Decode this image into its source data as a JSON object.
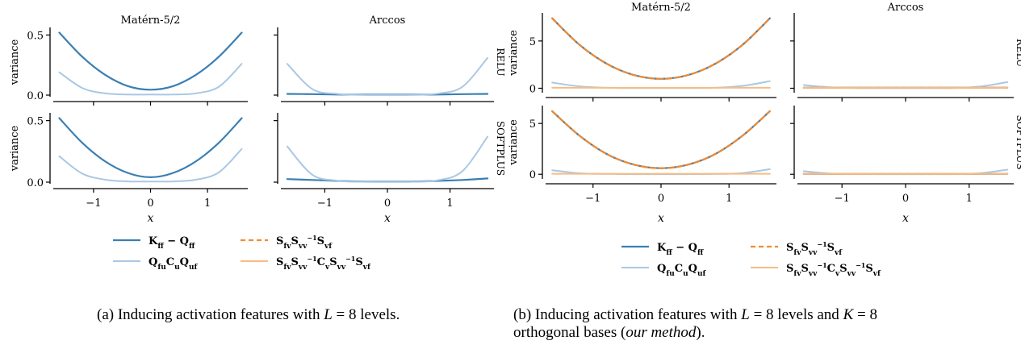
{
  "figure": {
    "captions": [
      {
        "label": "(a)",
        "text": "Inducing activation features with",
        "var": "L",
        "eq": "= 8 levels."
      },
      {
        "label": "(b)",
        "text": "Inducing activation features with",
        "var": "L",
        "eq": "= 8 levels and",
        "var2": "K",
        "eq2": "= 8",
        "line2": "orthogonal bases (",
        "line2_em": "our method",
        "line2_end": ")."
      }
    ],
    "colors": {
      "kff_minus_qff": "#3a7fb3",
      "qfu_cu_quf": "#aac8e4",
      "sfv_svv_svf": "#f28a30",
      "sfv_svv_cv_svv_svf": "#f7bc83",
      "axis": "#000000"
    }
  },
  "chart_data": [
    {
      "panel": "a",
      "type": "line",
      "column_titles": [
        "Matérn-5/2",
        "Arccos"
      ],
      "row_labels": [
        "RELU",
        "SOFTPLUS"
      ],
      "ylabel": "variance",
      "xlabel": "x",
      "xlim": [
        -1.65,
        1.65
      ],
      "xticks": [
        -1,
        0,
        1
      ],
      "legend": [
        "Kff − Qff",
        "Qfu Cu Quf",
        "Sfv Svv⁻¹ Svf",
        "Sfv Svv⁻¹ Cv Svv⁻¹ Svf"
      ],
      "legend_placement": "bottom-center",
      "grid": false,
      "subplots": [
        {
          "row": "RELU",
          "col": "Matérn-5/2",
          "ylim": [
            0,
            0.55
          ],
          "yticks": [
            0.0,
            0.5
          ],
          "series": [
            {
              "name": "Kff − Qff",
              "x": [
                -1.6,
                -1.2,
                -0.8,
                -0.4,
                0,
                0.4,
                0.8,
                1.2,
                1.6
              ],
              "y": [
                0.52,
                0.32,
                0.17,
                0.075,
                0.045,
                0.075,
                0.17,
                0.32,
                0.52
              ]
            },
            {
              "name": "Qfu Cu Quf",
              "x": [
                -1.6,
                -1.2,
                -0.8,
                -0.4,
                0,
                0.4,
                0.8,
                1.2,
                1.6
              ],
              "y": [
                0.19,
                0.06,
                0.015,
                0.005,
                0.005,
                0.005,
                0.015,
                0.07,
                0.26
              ]
            }
          ]
        },
        {
          "row": "RELU",
          "col": "Arccos",
          "ylim": [
            0,
            0.55
          ],
          "yticks": [],
          "series": [
            {
              "name": "Kff − Qff",
              "x": [
                -1.6,
                -1.2,
                -0.8,
                -0.4,
                0,
                0.4,
                0.8,
                1.2,
                1.6
              ],
              "y": [
                0.01,
                0.008,
                0.005,
                0.004,
                0.004,
                0.004,
                0.005,
                0.008,
                0.01
              ]
            },
            {
              "name": "Qfu Cu Quf",
              "x": [
                -1.6,
                -1.2,
                -0.8,
                -0.4,
                0,
                0.4,
                0.8,
                1.2,
                1.6
              ],
              "y": [
                0.26,
                0.05,
                0.01,
                0.002,
                0.001,
                0.002,
                0.012,
                0.07,
                0.31
              ]
            }
          ]
        },
        {
          "row": "SOFTPLUS",
          "col": "Matérn-5/2",
          "ylim": [
            0,
            0.55
          ],
          "yticks": [
            0.0,
            0.5
          ],
          "series": [
            {
              "name": "Kff − Qff",
              "x": [
                -1.6,
                -1.2,
                -0.8,
                -0.4,
                0,
                0.4,
                0.8,
                1.2,
                1.6
              ],
              "y": [
                0.52,
                0.32,
                0.17,
                0.075,
                0.04,
                0.075,
                0.17,
                0.32,
                0.52
              ]
            },
            {
              "name": "Qfu Cu Quf",
              "x": [
                -1.6,
                -1.2,
                -0.8,
                -0.4,
                0,
                0.4,
                0.8,
                1.2,
                1.6
              ],
              "y": [
                0.21,
                0.07,
                0.02,
                0.006,
                0.005,
                0.006,
                0.02,
                0.08,
                0.27
              ]
            }
          ]
        },
        {
          "row": "SOFTPLUS",
          "col": "Arccos",
          "ylim": [
            0,
            0.55
          ],
          "yticks": [],
          "series": [
            {
              "name": "Kff − Qff",
              "x": [
                -1.6,
                -1.2,
                -0.8,
                -0.4,
                0,
                0.4,
                0.8,
                1.2,
                1.6
              ],
              "y": [
                0.025,
                0.018,
                0.01,
                0.005,
                0.004,
                0.005,
                0.01,
                0.018,
                0.03
              ]
            },
            {
              "name": "Qfu Cu Quf",
              "x": [
                -1.6,
                -1.2,
                -0.8,
                -0.4,
                0,
                0.4,
                0.8,
                1.2,
                1.6
              ],
              "y": [
                0.29,
                0.06,
                0.012,
                0.003,
                0.002,
                0.003,
                0.015,
                0.09,
                0.37
              ]
            }
          ]
        }
      ]
    },
    {
      "panel": "b",
      "type": "line",
      "column_titles": [
        "Matérn-5/2",
        "Arccos"
      ],
      "row_labels": [
        "RELU",
        "SOFTPLUS"
      ],
      "ylabel": "variance",
      "xlabel": "x",
      "xlim": [
        -1.65,
        1.65
      ],
      "xticks": [
        -1,
        0,
        1
      ],
      "legend": [
        "Kff − Qff",
        "Qfu Cu Quf",
        "Sfv Svv⁻¹ Svf",
        "Sfv Svv⁻¹ Cv Svv⁻¹ Svf"
      ],
      "legend_placement": "bottom-center",
      "grid": false,
      "subplots": [
        {
          "row": "RELU",
          "col": "Matérn-5/2",
          "ylim": [
            -0.3,
            7.8
          ],
          "yticks": [
            0,
            5
          ],
          "series": [
            {
              "name": "Kff − Qff",
              "x": [
                -1.6,
                -1.2,
                -0.8,
                -0.4,
                0,
                0.4,
                0.8,
                1.2,
                1.6
              ],
              "y": [
                7.4,
                4.6,
                2.6,
                1.4,
                1.0,
                1.4,
                2.6,
                4.6,
                7.4
              ]
            },
            {
              "name": "Qfu Cu Quf",
              "x": [
                -1.6,
                -1.2,
                -0.8,
                -0.4,
                0,
                0.4,
                0.8,
                1.2,
                1.6
              ],
              "y": [
                0.6,
                0.2,
                0.05,
                0.02,
                0.02,
                0.02,
                0.05,
                0.25,
                0.75
              ]
            },
            {
              "name": "Sfv Svv⁻¹ Svf",
              "x": [
                -1.6,
                -1.2,
                -0.8,
                -0.4,
                0,
                0.4,
                0.8,
                1.2,
                1.6
              ],
              "y": [
                7.4,
                4.6,
                2.6,
                1.4,
                1.0,
                1.4,
                2.6,
                4.6,
                7.4
              ]
            },
            {
              "name": "Sfv Svv⁻¹ Cv Svv⁻¹ Svf",
              "x": [
                -1.6,
                -1.2,
                -0.8,
                -0.4,
                0,
                0.4,
                0.8,
                1.2,
                1.6
              ],
              "y": [
                0.05,
                0.05,
                0.05,
                0.05,
                0.05,
                0.05,
                0.05,
                0.05,
                0.05
              ]
            }
          ]
        },
        {
          "row": "RELU",
          "col": "Arccos",
          "ylim": [
            -0.3,
            7.8
          ],
          "yticks": [],
          "series": [
            {
              "name": "Kff − Qff",
              "x": [
                -1.6,
                -1.2,
                -0.8,
                -0.4,
                0,
                0.4,
                0.8,
                1.2,
                1.6
              ],
              "y": [
                0.05,
                0.05,
                0.05,
                0.05,
                0.05,
                0.05,
                0.05,
                0.05,
                0.05
              ]
            },
            {
              "name": "Qfu Cu Quf",
              "x": [
                -1.6,
                -1.2,
                -0.8,
                -0.4,
                0,
                0.4,
                0.8,
                1.2,
                1.6
              ],
              "y": [
                0.35,
                0.1,
                0.02,
                0.01,
                0.01,
                0.01,
                0.03,
                0.2,
                0.65
              ]
            },
            {
              "name": "Sfv Svv⁻¹ Svf",
              "x": [
                -1.6,
                -1.2,
                -0.8,
                -0.4,
                0,
                0.4,
                0.8,
                1.2,
                1.6
              ],
              "y": [
                0.05,
                0.05,
                0.05,
                0.05,
                0.05,
                0.05,
                0.05,
                0.05,
                0.05
              ]
            },
            {
              "name": "Sfv Svv⁻¹ Cv Svv⁻¹ Svf",
              "x": [
                -1.6,
                -1.2,
                -0.8,
                -0.4,
                0,
                0.4,
                0.8,
                1.2,
                1.6
              ],
              "y": [
                0.05,
                0.05,
                0.05,
                0.05,
                0.05,
                0.05,
                0.05,
                0.05,
                0.05
              ]
            }
          ]
        },
        {
          "row": "SOFTPLUS",
          "col": "Matérn-5/2",
          "ylim": [
            -0.3,
            6.6
          ],
          "yticks": [
            0,
            5
          ],
          "series": [
            {
              "name": "Kff − Qff",
              "x": [
                -1.6,
                -1.2,
                -0.8,
                -0.4,
                0,
                0.4,
                0.8,
                1.2,
                1.6
              ],
              "y": [
                6.2,
                3.8,
                2.0,
                0.95,
                0.6,
                0.95,
                2.0,
                3.8,
                6.2
              ]
            },
            {
              "name": "Qfu Cu Quf",
              "x": [
                -1.6,
                -1.2,
                -0.8,
                -0.4,
                0,
                0.4,
                0.8,
                1.2,
                1.6
              ],
              "y": [
                0.4,
                0.1,
                0.03,
                0.01,
                0.01,
                0.01,
                0.03,
                0.12,
                0.5
              ]
            },
            {
              "name": "Sfv Svv⁻¹ Svf",
              "x": [
                -1.6,
                -1.2,
                -0.8,
                -0.4,
                0,
                0.4,
                0.8,
                1.2,
                1.6
              ],
              "y": [
                6.2,
                3.8,
                2.0,
                0.95,
                0.6,
                0.95,
                2.0,
                3.8,
                6.2
              ]
            },
            {
              "name": "Sfv Svv⁻¹ Cv Svv⁻¹ Svf",
              "x": [
                -1.6,
                -1.2,
                -0.8,
                -0.4,
                0,
                0.4,
                0.8,
                1.2,
                1.6
              ],
              "y": [
                0.05,
                0.05,
                0.05,
                0.05,
                0.05,
                0.05,
                0.05,
                0.05,
                0.05
              ]
            }
          ]
        },
        {
          "row": "SOFTPLUS",
          "col": "Arccos",
          "ylim": [
            -0.3,
            6.6
          ],
          "yticks": [],
          "series": [
            {
              "name": "Kff − Qff",
              "x": [
                -1.6,
                -1.2,
                -0.8,
                -0.4,
                0,
                0.4,
                0.8,
                1.2,
                1.6
              ],
              "y": [
                0.05,
                0.05,
                0.05,
                0.05,
                0.05,
                0.05,
                0.05,
                0.05,
                0.05
              ]
            },
            {
              "name": "Qfu Cu Quf",
              "x": [
                -1.6,
                -1.2,
                -0.8,
                -0.4,
                0,
                0.4,
                0.8,
                1.2,
                1.6
              ],
              "y": [
                0.3,
                0.08,
                0.02,
                0.01,
                0.01,
                0.01,
                0.02,
                0.12,
                0.45
              ]
            },
            {
              "name": "Sfv Svv⁻¹ Svf",
              "x": [
                -1.6,
                -1.2,
                -0.8,
                -0.4,
                0,
                0.4,
                0.8,
                1.2,
                1.6
              ],
              "y": [
                0.05,
                0.05,
                0.05,
                0.05,
                0.05,
                0.05,
                0.05,
                0.05,
                0.05
              ]
            },
            {
              "name": "Sfv Svv⁻¹ Cv Svv⁻¹ Svf",
              "x": [
                -1.6,
                -1.2,
                -0.8,
                -0.4,
                0,
                0.4,
                0.8,
                1.2,
                1.6
              ],
              "y": [
                0.05,
                0.05,
                0.05,
                0.05,
                0.05,
                0.05,
                0.05,
                0.05,
                0.05
              ]
            }
          ]
        }
      ]
    }
  ]
}
